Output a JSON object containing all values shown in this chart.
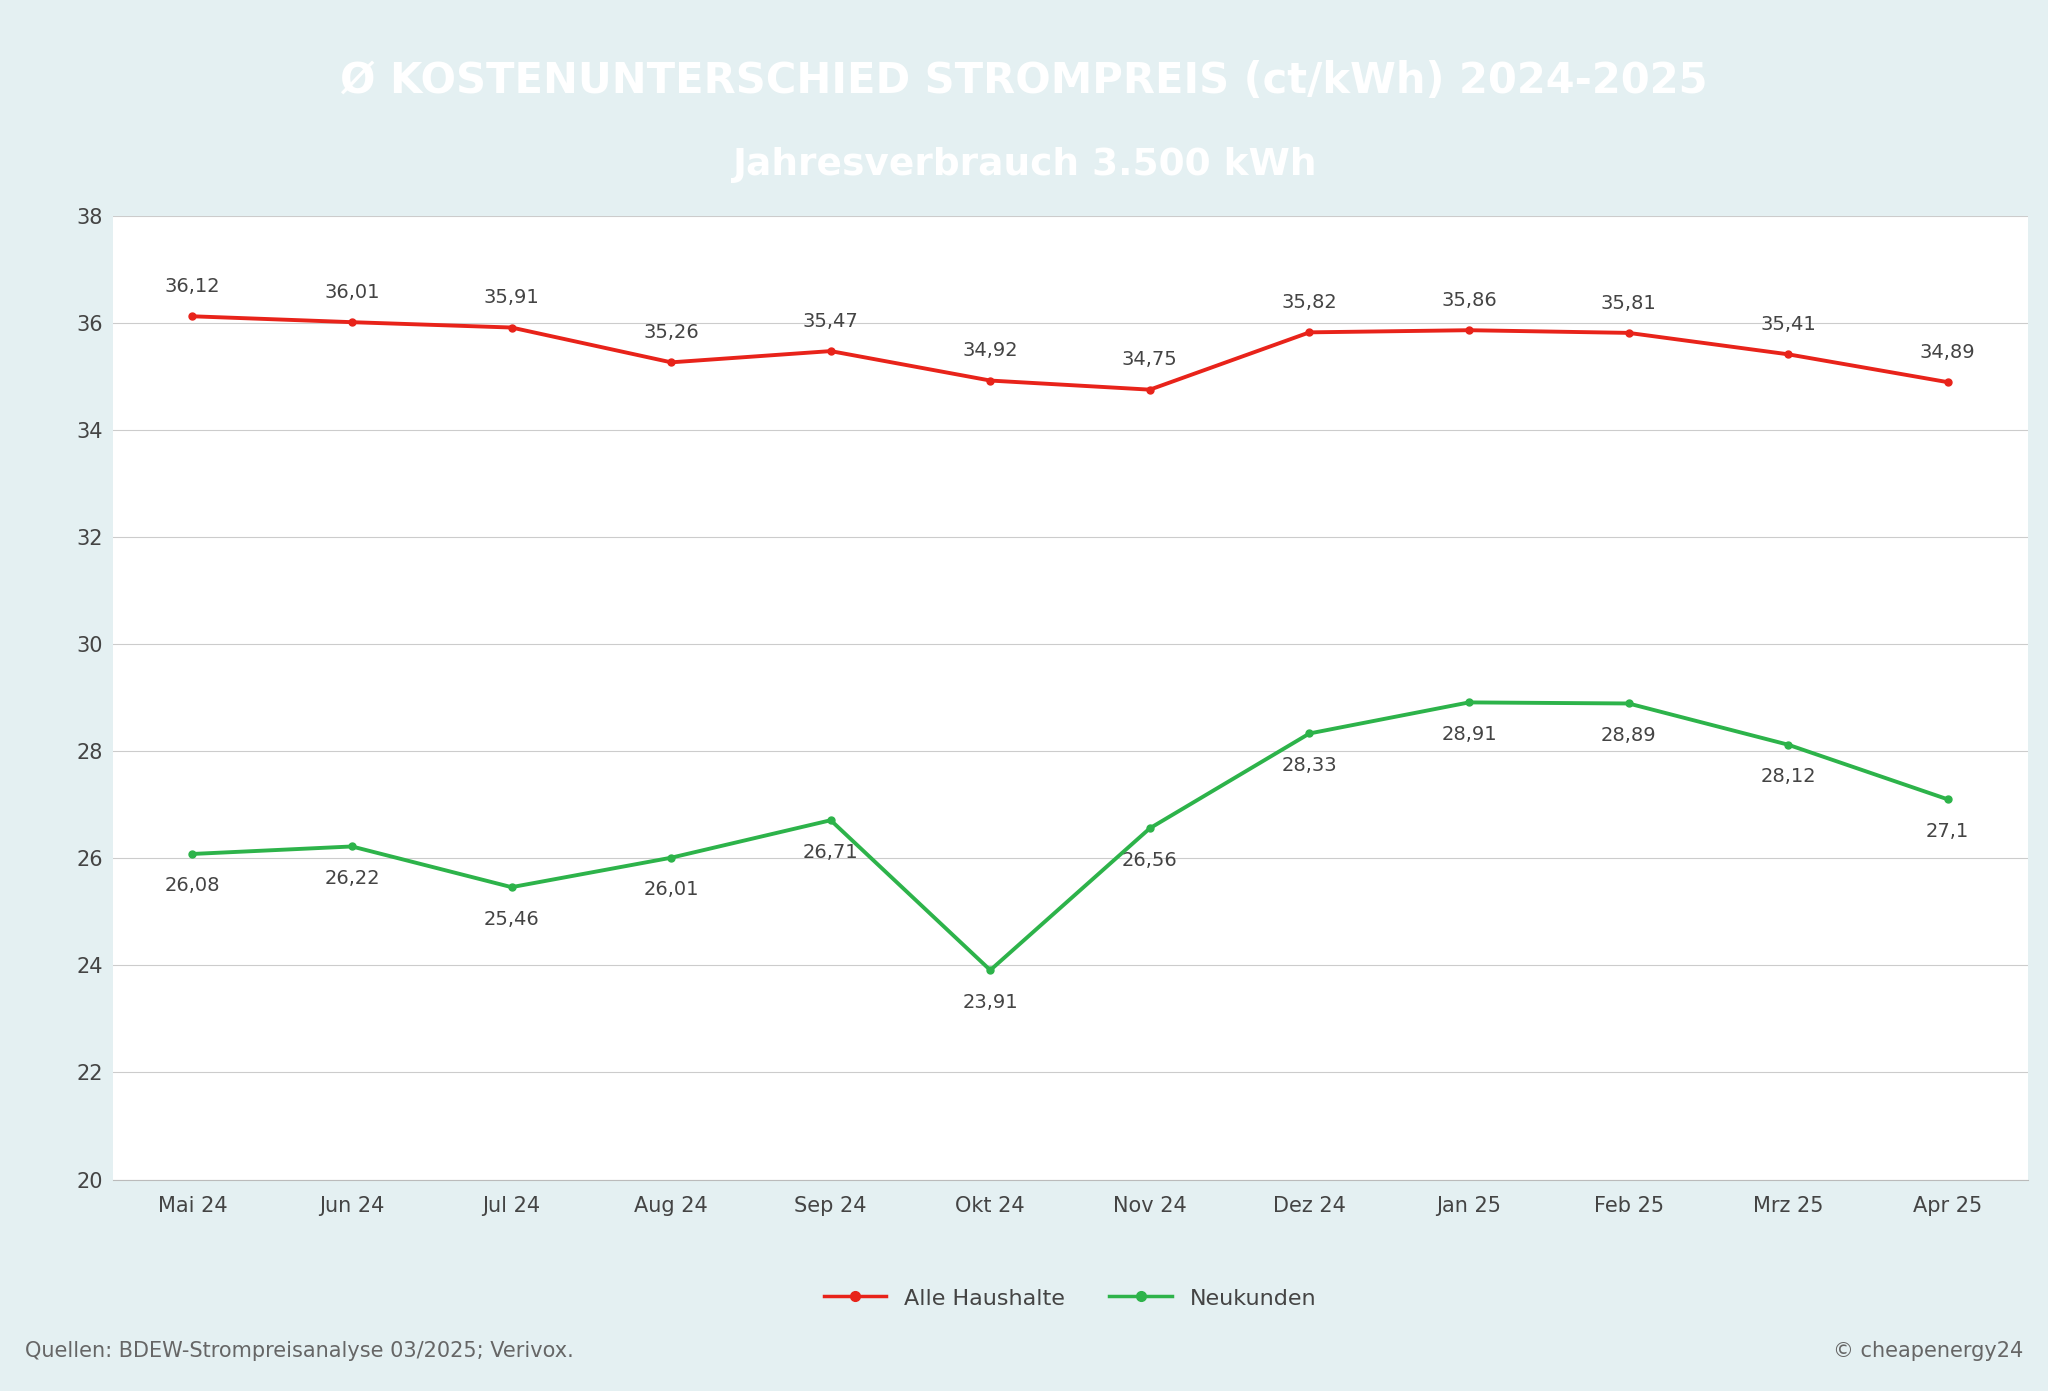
{
  "title_line1_part1": "Ø KOSTENUNTERSCHIED STROMPREIS ",
  "title_line1_part2": "(ct/kWh) ",
  "title_line1_part3": "2024-2025",
  "title_line2": "Jahresverbrauch 3.500 kWh",
  "header_bg_color": "#3b8fa1",
  "plot_bg_color": "#ffffff",
  "outer_bg_color": "#e4f0f2",
  "footer_bg_color": "#e4f0f2",
  "categories": [
    "Mai 24",
    "Jun 24",
    "Jul 24",
    "Aug 24",
    "Sep 24",
    "Okt 24",
    "Nov 24",
    "Dez 24",
    "Jan 25",
    "Feb 25",
    "Mrz 25",
    "Apr 25"
  ],
  "alle_haushalte": [
    36.12,
    36.01,
    35.91,
    35.26,
    35.47,
    34.92,
    34.75,
    35.82,
    35.86,
    35.81,
    35.41,
    34.89
  ],
  "neukunden": [
    26.08,
    26.22,
    25.46,
    26.01,
    26.71,
    23.91,
    26.56,
    28.33,
    28.91,
    28.89,
    28.12,
    27.1
  ],
  "alle_color": "#e8231a",
  "neu_color": "#2db34a",
  "ylim_min": 20,
  "ylim_max": 38,
  "ytick_step": 2,
  "line_width": 2.8,
  "tick_fontsize": 15,
  "annotation_fontsize": 14,
  "title1_fontsize": 30,
  "title2_fontsize": 27,
  "footer_left": "Quellen: BDEW-Strompreisanalyse 03/2025; Verivox.",
  "footer_right": "© cheapenergy24",
  "footer_fontsize": 15,
  "legend_fontsize": 16
}
